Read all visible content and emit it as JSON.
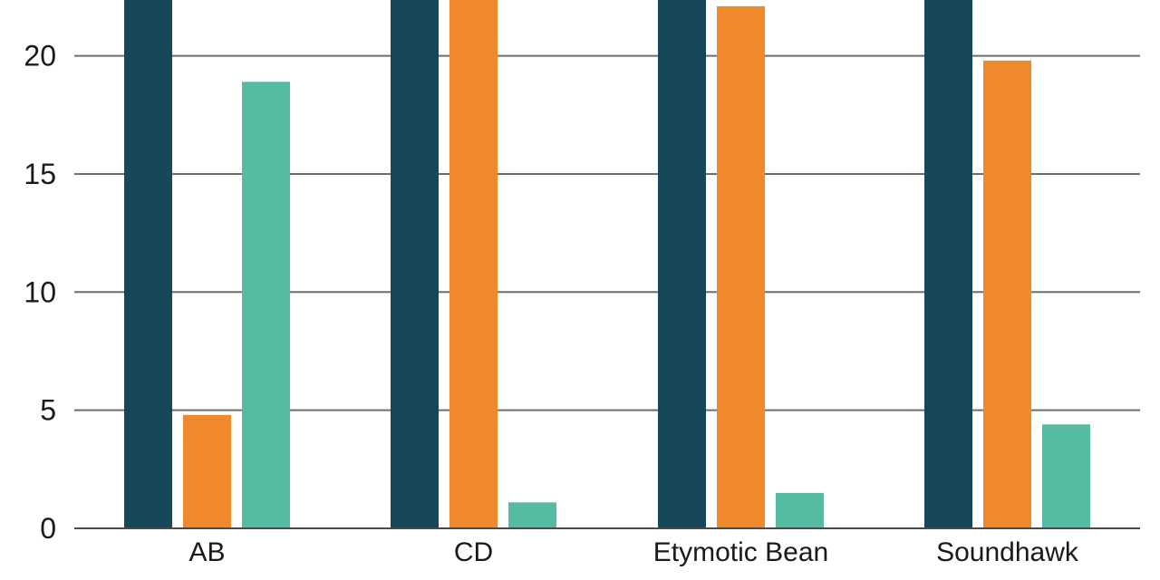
{
  "chart_data": {
    "type": "bar",
    "categories": [
      "AB",
      "CD",
      "Etymotic Bean",
      "Soundhawk"
    ],
    "series": [
      {
        "values": [
          25,
          25,
          25,
          25
        ],
        "color": "#16475a"
      },
      {
        "values": [
          4.8,
          22.5,
          22.1,
          19.8
        ],
        "color": "#f0892b"
      },
      {
        "values": [
          18.9,
          1.1,
          1.5,
          4.4
        ],
        "color": "#55bca2"
      }
    ],
    "y_ticks": [
      0,
      5,
      10,
      15,
      20
    ],
    "ylim": [
      0,
      22.4
    ],
    "grid": true,
    "xlabel": "",
    "ylabel": "",
    "title": ""
  }
}
